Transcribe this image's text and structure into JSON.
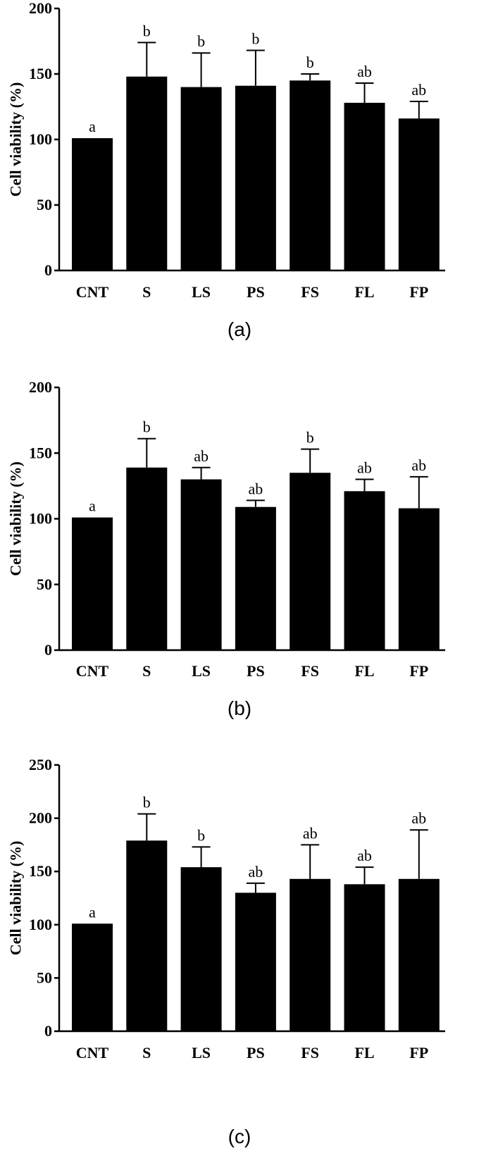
{
  "chart_data": [
    {
      "type": "bar",
      "panel_label": "(a)",
      "ylabel": "Cell viability (%)",
      "ylim": [
        0,
        200
      ],
      "yticks": [
        "0",
        "50",
        "100",
        "150",
        "200"
      ],
      "ytick_values": [
        0,
        50,
        100,
        150,
        200
      ],
      "categories": [
        "CNT",
        "S",
        "LS",
        "PS",
        "FS",
        "FL",
        "FP"
      ],
      "values": [
        101,
        148,
        140,
        141,
        145,
        128,
        116
      ],
      "errors": [
        0,
        26,
        26,
        27,
        5,
        15,
        13
      ],
      "significance": [
        "a",
        "b",
        "b",
        "b",
        "b",
        "ab",
        "ab"
      ]
    },
    {
      "type": "bar",
      "panel_label": "(b)",
      "ylabel": "Cell viability (%)",
      "ylim": [
        0,
        200
      ],
      "yticks": [
        "0",
        "50",
        "100",
        "150",
        "200"
      ],
      "ytick_values": [
        0,
        50,
        100,
        150,
        200
      ],
      "categories": [
        "CNT",
        "S",
        "LS",
        "PS",
        "FS",
        "FL",
        "FP"
      ],
      "values": [
        101,
        139,
        130,
        109,
        135,
        121,
        108
      ],
      "errors": [
        0,
        22,
        9,
        5,
        18,
        9,
        24
      ],
      "significance": [
        "a",
        "b",
        "ab",
        "ab",
        "b",
        "ab",
        "ab"
      ]
    },
    {
      "type": "bar",
      "panel_label": "(c)",
      "ylabel": "Cell viability (%)",
      "ylim": [
        0,
        250
      ],
      "yticks": [
        "0",
        "50",
        "100",
        "150",
        "200",
        "250"
      ],
      "ytick_values": [
        0,
        50,
        100,
        150,
        200,
        250
      ],
      "categories": [
        "CNT",
        "S",
        "LS",
        "PS",
        "FS",
        "FL",
        "FP"
      ],
      "values": [
        101,
        179,
        154,
        130,
        143,
        138,
        143
      ],
      "errors": [
        0,
        25,
        19,
        9,
        32,
        16,
        46
      ],
      "significance": [
        "a",
        "b",
        "b",
        "ab",
        "ab",
        "ab",
        "ab"
      ]
    }
  ]
}
